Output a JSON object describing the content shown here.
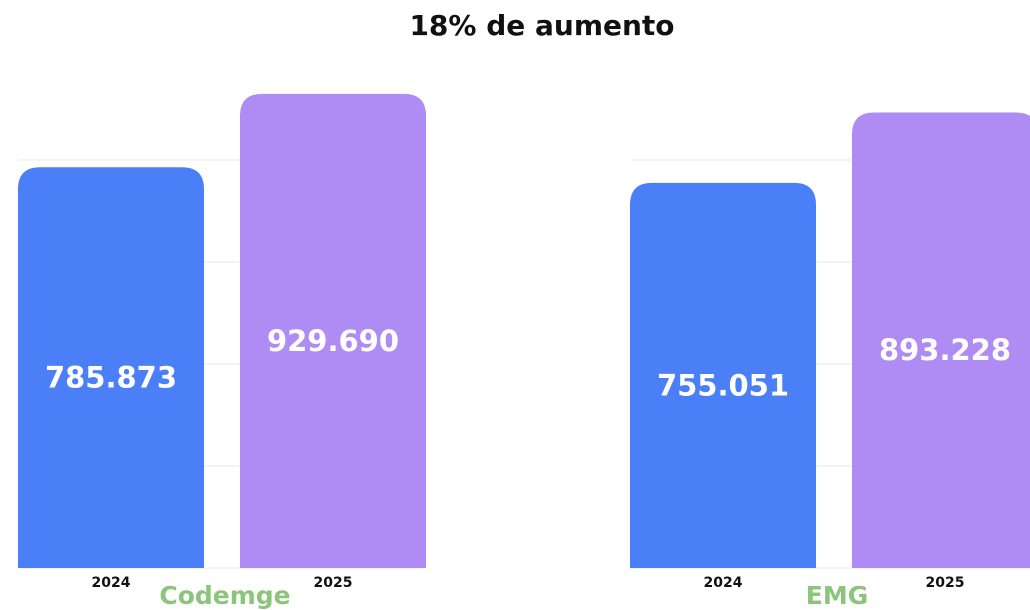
{
  "title": "18% de aumento",
  "chart_data": [
    {
      "type": "bar",
      "xlabel": "Codemge",
      "categories": [
        "2024",
        "2025"
      ],
      "values": [
        785873,
        929690
      ],
      "value_labels": [
        "785.873",
        "929.690"
      ],
      "colors": [
        "#4a7ff7",
        "#ae8cf4"
      ],
      "ylim": [
        0,
        1000000
      ],
      "yticks": [
        0,
        200000,
        400000,
        600000,
        800000
      ],
      "grid": true
    },
    {
      "type": "bar",
      "xlabel": "EMG",
      "categories": [
        "2024",
        "2025"
      ],
      "values": [
        755051,
        893228
      ],
      "value_labels": [
        "755.051",
        "893.228"
      ],
      "colors": [
        "#4a7ff7",
        "#ae8cf4"
      ],
      "ylim": [
        0,
        1000000
      ],
      "yticks": [
        0,
        200000,
        400000,
        600000,
        800000
      ],
      "grid": true
    }
  ]
}
